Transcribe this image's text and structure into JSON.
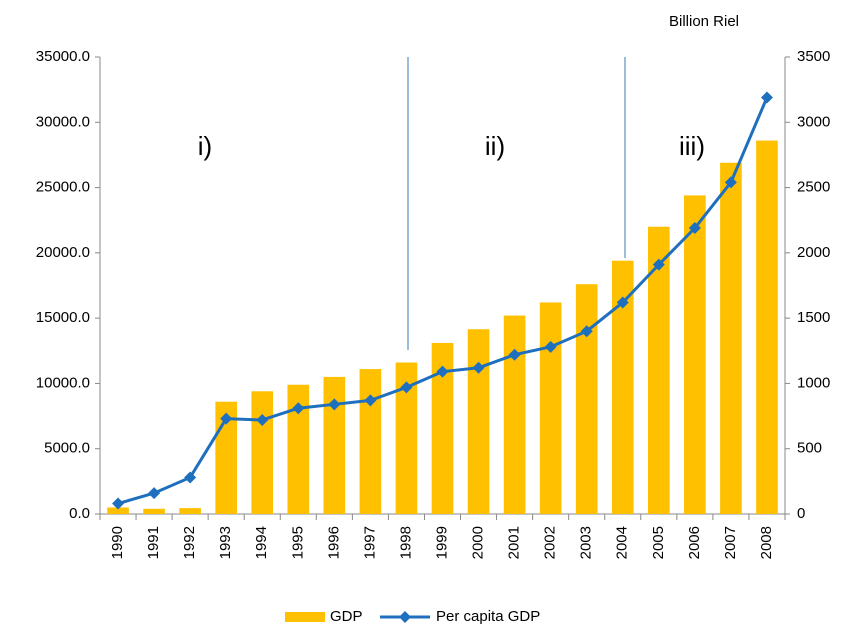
{
  "chart_data": {
    "type": "bar-line",
    "unit_label": "Billion Riel",
    "annotations": [
      "i)",
      "ii)",
      "iii)"
    ],
    "categories": [
      "1990",
      "1991",
      "1992",
      "1993",
      "1994",
      "1995",
      "1996",
      "1997",
      "1998",
      "1999",
      "2000",
      "2001",
      "2002",
      "2003",
      "2004",
      "2005",
      "2006",
      "2007",
      "2008"
    ],
    "series": [
      {
        "name": "GDP",
        "type": "bar",
        "color": "#ffc000",
        "axis": "y",
        "values": [
          500,
          400,
          450,
          8600,
          9400,
          9900,
          10500,
          11100,
          11600,
          13100,
          14150,
          15200,
          16200,
          17600,
          19400,
          22000,
          24400,
          26900,
          28600
        ]
      },
      {
        "name": "Per capita GDP",
        "type": "line",
        "color": "#1f6fbf",
        "axis": "y2",
        "values": [
          80,
          160,
          280,
          730,
          720,
          810,
          840,
          870,
          970,
          1090,
          1120,
          1220,
          1280,
          1400,
          1620,
          1910,
          2190,
          2540,
          3190
        ]
      }
    ],
    "ylim": [
      0,
      35000
    ],
    "yticks": [
      {
        "value": 0,
        "label": "0.0"
      },
      {
        "value": 5000,
        "label": "5000.0"
      },
      {
        "value": 10000,
        "label": "10000.0"
      },
      {
        "value": 15000,
        "label": "15000.0"
      },
      {
        "value": 20000,
        "label": "20000.0"
      },
      {
        "value": 25000,
        "label": "25000.0"
      },
      {
        "value": 30000,
        "label": "30000.0"
      },
      {
        "value": 35000,
        "label": "35000.0"
      }
    ],
    "y2lim": [
      0,
      3500
    ],
    "y2ticks": [
      0,
      500,
      1000,
      1500,
      2000,
      2500,
      3000,
      3500
    ]
  }
}
